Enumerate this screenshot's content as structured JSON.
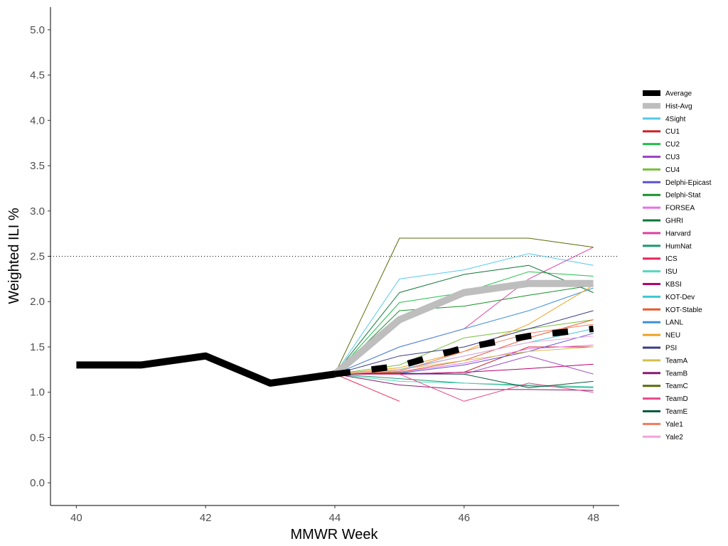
{
  "chart_data": {
    "type": "line",
    "xlabel": "MMWR Week",
    "ylabel": "Weighted ILI %",
    "xlim": [
      39.6,
      48.4
    ],
    "ylim": [
      -0.25,
      5.25
    ],
    "xticks": [
      40,
      42,
      44,
      46,
      48
    ],
    "yticks": [
      0.0,
      0.5,
      1.0,
      1.5,
      2.0,
      2.5,
      3.0,
      3.5,
      4.0,
      4.5,
      5.0
    ],
    "ytick_labels": [
      "0.0",
      "0.5",
      "1.0",
      "1.5",
      "2.0",
      "2.5",
      "3.0",
      "3.5",
      "4.0",
      "4.5",
      "5.0"
    ],
    "threshold": 2.5,
    "grid": false,
    "legend_position": "right",
    "observed": {
      "x": [
        40,
        41,
        42,
        43,
        44
      ],
      "y": [
        1.3,
        1.3,
        1.4,
        1.1,
        1.2
      ],
      "color": "#000000"
    },
    "series": [
      {
        "name": "Average",
        "color": "#000000",
        "x": [
          44,
          45,
          46,
          47,
          48
        ],
        "y": [
          1.2,
          1.29,
          1.49,
          1.62,
          1.7
        ]
      },
      {
        "name": "Hist-Avg",
        "color": "#bebebe",
        "x": [
          44,
          45,
          46,
          47,
          48
        ],
        "y": [
          1.2,
          1.8,
          2.1,
          2.2,
          2.2
        ]
      },
      {
        "name": "4Sight",
        "color": "#56c8ea",
        "x": [
          44,
          45,
          46,
          47,
          48
        ],
        "y": [
          1.2,
          2.25,
          2.35,
          2.53,
          2.4
        ]
      },
      {
        "name": "CU1",
        "color": "#cc2127",
        "x": [
          44,
          45,
          46,
          47,
          48
        ],
        "y": [
          1.2,
          1.2,
          1.22,
          1.5,
          1.5
        ]
      },
      {
        "name": "CU2",
        "color": "#22bf4b",
        "x": [
          44,
          45,
          46,
          47,
          48
        ],
        "y": [
          1.2,
          1.99,
          2.1,
          2.33,
          2.28
        ]
      },
      {
        "name": "CU3",
        "color": "#9b45c6",
        "x": [
          44,
          45,
          46,
          47,
          48
        ],
        "y": [
          1.2,
          1.2,
          1.2,
          1.4,
          1.2
        ]
      },
      {
        "name": "CU4",
        "color": "#77bf3c",
        "x": [
          44,
          45,
          46,
          47,
          48
        ],
        "y": [
          1.2,
          1.3,
          1.6,
          1.7,
          1.8
        ]
      },
      {
        "name": "Delphi-Epicast",
        "color": "#5a52d4",
        "x": [
          44,
          45,
          46,
          47,
          48
        ],
        "y": [
          1.2,
          1.21,
          1.3,
          1.45,
          1.65
        ]
      },
      {
        "name": "Delphi-Stat",
        "color": "#18912b",
        "x": [
          44,
          45,
          46,
          47,
          48
        ],
        "y": [
          1.2,
          1.9,
          1.95,
          2.07,
          2.18
        ]
      },
      {
        "name": "FORSEA",
        "color": "#e86fe8",
        "x": [
          44,
          45,
          46,
          47,
          48
        ],
        "y": [
          1.2,
          1.22,
          1.32,
          1.48,
          1.52
        ]
      },
      {
        "name": "GHRI",
        "color": "#0d7535",
        "x": [
          44,
          45,
          46,
          47,
          48
        ],
        "y": [
          1.2,
          2.1,
          2.3,
          2.4,
          2.1
        ]
      },
      {
        "name": "Harvard",
        "color": "#e23fa1",
        "x": [
          44,
          45,
          46,
          47,
          48
        ],
        "y": [
          1.2,
          1.5,
          1.7,
          2.25,
          2.6
        ]
      },
      {
        "name": "HumNat",
        "color": "#1d9a6f",
        "x": [
          44,
          45,
          46,
          47,
          48
        ],
        "y": [
          1.2,
          1.15,
          1.1,
          1.07,
          1.05
        ]
      },
      {
        "name": "ICS",
        "color": "#e8265a",
        "x": [
          44,
          45
        ],
        "y": [
          1.2,
          0.9
        ]
      },
      {
        "name": "ISU",
        "color": "#55d8bd",
        "x": [
          44,
          45,
          46,
          47,
          48
        ],
        "y": [
          1.2,
          1.12,
          1.1,
          1.08,
          1.06
        ]
      },
      {
        "name": "KBSI",
        "color": "#b8006b",
        "x": [
          44,
          45,
          46,
          47,
          48
        ],
        "y": [
          1.2,
          1.2,
          1.22,
          1.26,
          1.31
        ]
      },
      {
        "name": "KOT-Dev",
        "color": "#3ec7d6",
        "x": [
          44,
          45,
          46,
          47,
          48
        ],
        "y": [
          1.2,
          1.25,
          1.4,
          1.55,
          1.7
        ]
      },
      {
        "name": "KOT-Stable",
        "color": "#e85a2e",
        "x": [
          44,
          45,
          46,
          47,
          48
        ],
        "y": [
          1.2,
          1.22,
          1.35,
          1.6,
          1.8
        ]
      },
      {
        "name": "LANL",
        "color": "#3f90d8",
        "x": [
          44,
          45,
          46,
          47,
          48
        ],
        "y": [
          1.2,
          1.5,
          1.7,
          1.9,
          2.15
        ]
      },
      {
        "name": "NEU",
        "color": "#eda21f",
        "x": [
          44,
          45,
          46,
          47,
          48
        ],
        "y": [
          1.2,
          1.27,
          1.45,
          1.75,
          2.18
        ]
      },
      {
        "name": "PSI",
        "color": "#3b3b87",
        "x": [
          44,
          45,
          46,
          47,
          48
        ],
        "y": [
          1.2,
          1.4,
          1.5,
          1.7,
          1.9
        ]
      },
      {
        "name": "TeamA",
        "color": "#d3c04e",
        "x": [
          44,
          45,
          46,
          47,
          48
        ],
        "y": [
          1.2,
          1.25,
          1.35,
          1.45,
          1.5
        ]
      },
      {
        "name": "TeamB",
        "color": "#861a72",
        "x": [
          44,
          45,
          46,
          47,
          48
        ],
        "y": [
          1.2,
          1.08,
          1.03,
          1.03,
          1.02
        ]
      },
      {
        "name": "TeamC",
        "color": "#5b6a08",
        "x": [
          44,
          45,
          46,
          47,
          48
        ],
        "y": [
          1.2,
          2.7,
          2.7,
          2.7,
          2.6
        ]
      },
      {
        "name": "TeamD",
        "color": "#e84a8a",
        "x": [
          44,
          45,
          46,
          47,
          48
        ],
        "y": [
          1.2,
          1.2,
          0.9,
          1.1,
          1.0
        ]
      },
      {
        "name": "TeamE",
        "color": "#0b5a3a",
        "x": [
          44,
          45,
          46,
          47,
          48
        ],
        "y": [
          1.2,
          1.21,
          1.2,
          1.05,
          1.12
        ]
      },
      {
        "name": "Yale1",
        "color": "#f07a5c",
        "x": [
          44,
          45,
          46,
          47,
          48
        ],
        "y": [
          1.2,
          1.23,
          1.45,
          1.65,
          1.75
        ]
      },
      {
        "name": "Yale2",
        "color": "#f3a4db",
        "x": [
          44,
          45,
          46,
          47,
          48
        ],
        "y": [
          1.2,
          1.24,
          1.4,
          1.55,
          1.62
        ]
      }
    ]
  }
}
